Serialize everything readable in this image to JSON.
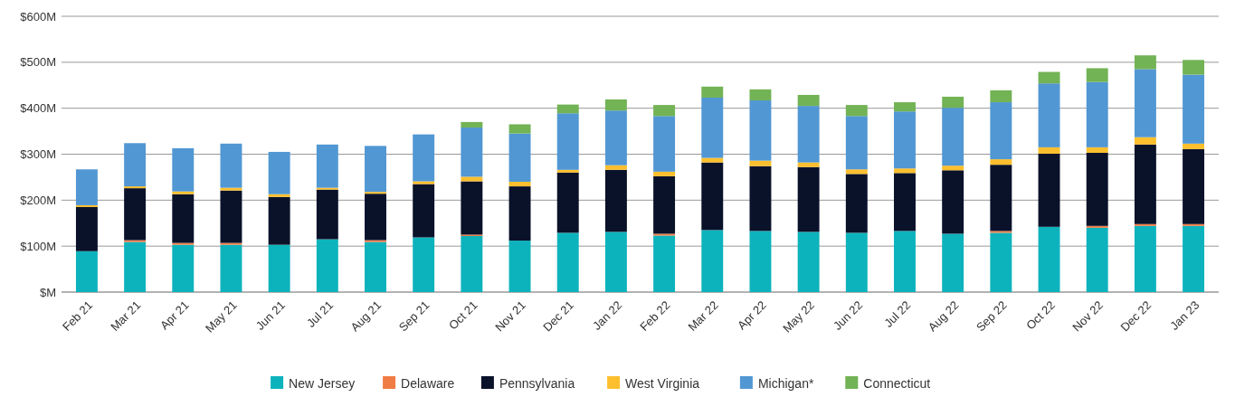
{
  "chart_data": {
    "type": "bar",
    "stacked": true,
    "categories": [
      "Feb 21",
      "Mar 21",
      "Apr 21",
      "May 21",
      "Jun 21",
      "Jul 21",
      "Aug 21",
      "Sep 21",
      "Oct 21",
      "Nov 21",
      "Dec 21",
      "Jan 22",
      "Feb 22",
      "Mar 22",
      "Apr 22",
      "May 22",
      "Jun 22",
      "Jul 22",
      "Aug 22",
      "Sep 22",
      "Oct 22",
      "Nov 22",
      "Dec 22",
      "Jan 23"
    ],
    "series": [
      {
        "name": "New Jersey",
        "color": "#0db3bc",
        "values": [
          89,
          109,
          103,
          103,
          103,
          115,
          109,
          119,
          122,
          112,
          129,
          131,
          123,
          135,
          133,
          131,
          129,
          133,
          127,
          129,
          142,
          140,
          144,
          144
        ]
      },
      {
        "name": "Delaware",
        "color": "#f07c45",
        "values": [
          null,
          4,
          4,
          4,
          null,
          null,
          4,
          null,
          3,
          null,
          null,
          null,
          4,
          null,
          null,
          null,
          null,
          null,
          null,
          4,
          null,
          4,
          4,
          4
        ]
      },
      {
        "name": "Pennsylvania",
        "color": "#0a122a",
        "values": [
          96,
          113,
          106,
          114,
          104,
          108,
          101,
          116,
          116,
          118,
          131,
          135,
          125,
          147,
          141,
          141,
          128,
          126,
          138,
          144,
          159,
          159,
          173,
          163
        ]
      },
      {
        "name": "West Virginia",
        "color": "#fdbf2d",
        "values": [
          4,
          4,
          6,
          6,
          6,
          4,
          4,
          6,
          10,
          10,
          6,
          10,
          10,
          10,
          12,
          10,
          10,
          10,
          10,
          12,
          14,
          12,
          16,
          12
        ]
      },
      {
        "name": "Michigan*",
        "color": "#5197d3",
        "values": [
          78,
          94,
          94,
          96,
          92,
          94,
          100,
          102,
          107,
          105,
          123,
          119,
          121,
          131,
          131,
          123,
          116,
          124,
          126,
          124,
          139,
          142,
          148,
          150
        ]
      },
      {
        "name": "Connecticut",
        "color": "#72b355",
        "values": [
          null,
          null,
          null,
          null,
          null,
          null,
          null,
          null,
          12,
          20,
          19,
          24,
          24,
          24,
          24,
          24,
          24,
          20,
          24,
          26,
          25,
          30,
          30,
          32
        ]
      }
    ],
    "ylim": [
      0,
      600
    ],
    "yticks": [
      {
        "value": 0,
        "label": "$M"
      },
      {
        "value": 100,
        "label": "$100M"
      },
      {
        "value": 200,
        "label": "$200M"
      },
      {
        "value": 300,
        "label": "$300M"
      },
      {
        "value": 400,
        "label": "$400M"
      },
      {
        "value": 500,
        "label": "$500M"
      },
      {
        "value": 600,
        "label": "$600M"
      }
    ],
    "grid": "y",
    "legend": "bottom"
  }
}
